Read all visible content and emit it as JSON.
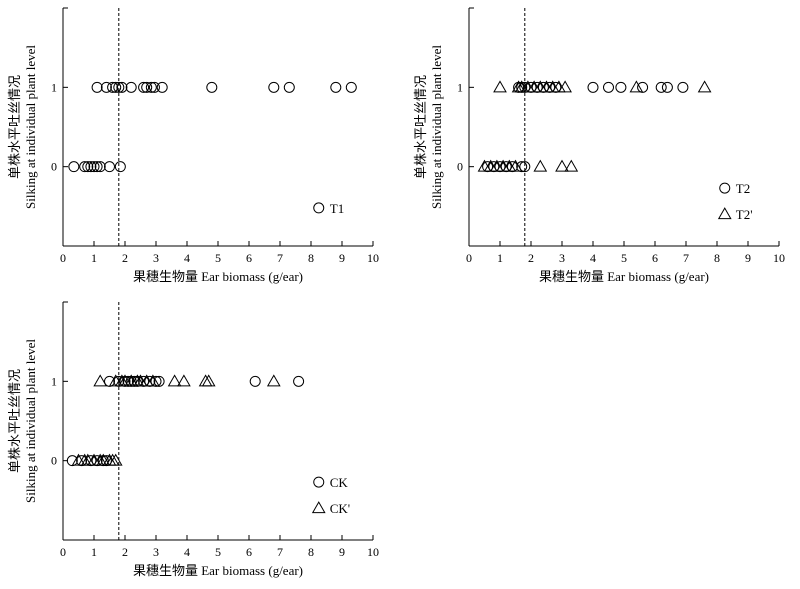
{
  "chart_data": [
    {
      "type": "scatter",
      "xlabel": "果穗生物量 Ear biomass (g/ear)",
      "ylabel_cn": "单株水平吐丝情况",
      "ylabel_en": "Silking at individual plant level",
      "xlim": [
        0,
        10
      ],
      "ylim": [
        -1,
        2
      ],
      "xticks": [
        "0",
        "1",
        "2",
        "3",
        "4",
        "5",
        "6",
        "7",
        "8",
        "9",
        "10"
      ],
      "yticks": [
        "0",
        "1"
      ],
      "threshold_x": 1.8,
      "legend_position": "bottom-right",
      "series": [
        {
          "name": "T1",
          "marker": "circle",
          "points": [
            [
              1.1,
              1
            ],
            [
              1.4,
              1
            ],
            [
              1.6,
              1
            ],
            [
              1.7,
              1
            ],
            [
              1.8,
              1
            ],
            [
              1.9,
              1
            ],
            [
              2.2,
              1
            ],
            [
              2.6,
              1
            ],
            [
              2.7,
              1
            ],
            [
              2.85,
              1
            ],
            [
              2.95,
              1
            ],
            [
              3.2,
              1
            ],
            [
              4.8,
              1
            ],
            [
              6.8,
              1
            ],
            [
              7.3,
              1
            ],
            [
              8.8,
              1
            ],
            [
              9.3,
              1
            ],
            [
              0.35,
              0
            ],
            [
              0.7,
              0
            ],
            [
              0.8,
              0
            ],
            [
              0.9,
              0
            ],
            [
              1.0,
              0
            ],
            [
              1.1,
              0
            ],
            [
              1.2,
              0
            ],
            [
              1.5,
              0
            ],
            [
              1.85,
              0
            ]
          ]
        }
      ]
    },
    {
      "type": "scatter",
      "xlabel": "果穗生物量 Ear biomass (g/ear)",
      "ylabel_cn": "单株水平吐丝情况",
      "ylabel_en": "Silking at individual plant level",
      "xlim": [
        0,
        10
      ],
      "ylim": [
        -1,
        2
      ],
      "xticks": [
        "0",
        "1",
        "2",
        "3",
        "4",
        "5",
        "6",
        "7",
        "8",
        "9",
        "10"
      ],
      "yticks": [
        "0",
        "1"
      ],
      "threshold_x": 1.8,
      "legend_position": "bottom-right",
      "series": [
        {
          "name": "T2",
          "marker": "circle",
          "points": [
            [
              1.6,
              1
            ],
            [
              1.7,
              1
            ],
            [
              1.8,
              1
            ],
            [
              2.0,
              1
            ],
            [
              2.2,
              1
            ],
            [
              2.4,
              1
            ],
            [
              2.6,
              1
            ],
            [
              2.8,
              1
            ],
            [
              4.0,
              1
            ],
            [
              4.5,
              1
            ],
            [
              4.9,
              1
            ],
            [
              5.6,
              1
            ],
            [
              6.2,
              1
            ],
            [
              6.4,
              1
            ],
            [
              6.9,
              1
            ],
            [
              0.6,
              0
            ],
            [
              0.8,
              0
            ],
            [
              1.0,
              0
            ],
            [
              1.2,
              0
            ],
            [
              1.4,
              0
            ],
            [
              1.7,
              0
            ],
            [
              1.8,
              0
            ]
          ]
        },
        {
          "name": "T2'",
          "marker": "triangle",
          "points": [
            [
              1.0,
              1
            ],
            [
              1.6,
              1
            ],
            [
              1.7,
              1
            ],
            [
              1.9,
              1
            ],
            [
              2.1,
              1
            ],
            [
              2.3,
              1
            ],
            [
              2.5,
              1
            ],
            [
              2.7,
              1
            ],
            [
              2.9,
              1
            ],
            [
              3.1,
              1
            ],
            [
              5.4,
              1
            ],
            [
              7.6,
              1
            ],
            [
              0.5,
              0
            ],
            [
              0.7,
              0
            ],
            [
              0.9,
              0
            ],
            [
              1.1,
              0
            ],
            [
              1.3,
              0
            ],
            [
              1.5,
              0
            ],
            [
              2.3,
              0
            ],
            [
              3.0,
              0
            ],
            [
              3.3,
              0
            ]
          ]
        }
      ]
    },
    {
      "type": "scatter",
      "xlabel": "果穗生物量 Ear biomass (g/ear)",
      "ylabel_cn": "单株水平吐丝情况",
      "ylabel_en": "Silking at individual plant level",
      "xlim": [
        0,
        10
      ],
      "ylim": [
        -1,
        2
      ],
      "xticks": [
        "0",
        "1",
        "2",
        "3",
        "4",
        "5",
        "6",
        "7",
        "8",
        "9",
        "10"
      ],
      "yticks": [
        "0",
        "1"
      ],
      "threshold_x": 1.8,
      "legend_position": "bottom-right",
      "series": [
        {
          "name": "CK",
          "marker": "circle",
          "points": [
            [
              1.5,
              1
            ],
            [
              1.8,
              1
            ],
            [
              2.0,
              1
            ],
            [
              2.1,
              1
            ],
            [
              2.2,
              1
            ],
            [
              2.3,
              1
            ],
            [
              2.4,
              1
            ],
            [
              2.6,
              1
            ],
            [
              2.8,
              1
            ],
            [
              3.0,
              1
            ],
            [
              3.1,
              1
            ],
            [
              6.2,
              1
            ],
            [
              7.6,
              1
            ],
            [
              0.3,
              0
            ],
            [
              0.6,
              0
            ],
            [
              0.9,
              0
            ],
            [
              1.1,
              0
            ],
            [
              1.3,
              0
            ],
            [
              1.4,
              0
            ]
          ]
        },
        {
          "name": "CK'",
          "marker": "triangle",
          "points": [
            [
              1.2,
              1
            ],
            [
              1.7,
              1
            ],
            [
              1.9,
              1
            ],
            [
              2.0,
              1
            ],
            [
              2.2,
              1
            ],
            [
              2.4,
              1
            ],
            [
              2.5,
              1
            ],
            [
              2.7,
              1
            ],
            [
              2.9,
              1
            ],
            [
              3.6,
              1
            ],
            [
              3.9,
              1
            ],
            [
              4.6,
              1
            ],
            [
              4.7,
              1
            ],
            [
              6.8,
              1
            ],
            [
              0.5,
              0
            ],
            [
              0.7,
              0
            ],
            [
              0.8,
              0
            ],
            [
              1.0,
              0
            ],
            [
              1.2,
              0
            ],
            [
              1.3,
              0
            ],
            [
              1.5,
              0
            ],
            [
              1.6,
              0
            ],
            [
              1.7,
              0
            ]
          ]
        }
      ]
    }
  ]
}
